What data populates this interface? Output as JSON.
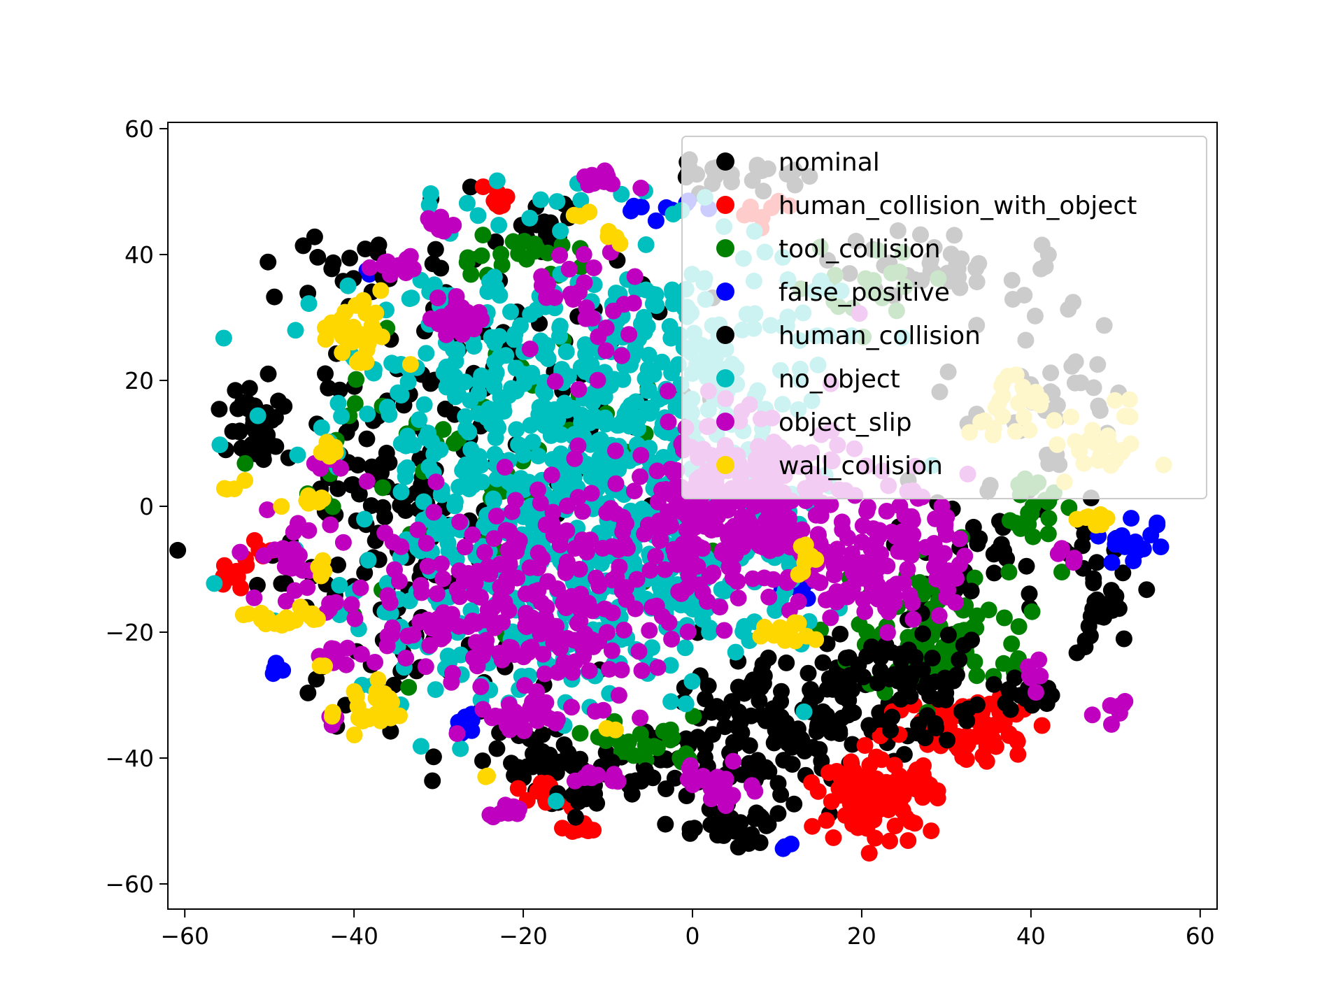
{
  "chart_data": {
    "type": "scatter",
    "title": "",
    "xlabel": "",
    "ylabel": "",
    "xlim": [
      -62,
      62
    ],
    "ylim": [
      -64,
      61
    ],
    "grid": false,
    "legend_placement": "top-right",
    "xticks": [
      -60,
      -40,
      -20,
      0,
      20,
      40,
      60
    ],
    "yticks": [
      -60,
      -40,
      -20,
      0,
      20,
      40,
      60
    ],
    "xtick_labels": [
      "−60",
      "−40",
      "−20",
      "0",
      "20",
      "40",
      "60"
    ],
    "ytick_labels": [
      "−60",
      "−40",
      "−20",
      "0",
      "20",
      "40",
      "60"
    ],
    "series": [
      {
        "name": "nominal",
        "color": "#000000",
        "clusters": [
          {
            "cx": -34,
            "cy": -5,
            "rx": 15,
            "ry": 27,
            "n": 170
          },
          {
            "cx": 10,
            "cy": -35,
            "rx": 14,
            "ry": 10,
            "n": 160
          },
          {
            "cx": -52,
            "cy": 12,
            "rx": 3,
            "ry": 7,
            "n": 35
          },
          {
            "cx": -17,
            "cy": -40,
            "rx": 10,
            "ry": 5,
            "n": 45
          },
          {
            "cx": 5,
            "cy": -51,
            "rx": 7,
            "ry": 4,
            "n": 30
          },
          {
            "cx": 48,
            "cy": -15,
            "rx": 4,
            "ry": 10,
            "n": 35
          },
          {
            "cx": 33,
            "cy": -8,
            "rx": 8,
            "ry": 10,
            "n": 40
          },
          {
            "cx": -17,
            "cy": 45,
            "rx": 4,
            "ry": 4,
            "n": 18
          },
          {
            "cx": 6,
            "cy": 53,
            "rx": 8,
            "ry": 2,
            "n": 25
          },
          {
            "cx": 30,
            "cy": 38,
            "rx": 14,
            "ry": 5,
            "n": 35
          },
          {
            "cx": 42,
            "cy": 15,
            "rx": 10,
            "ry": 15,
            "n": 40
          },
          {
            "cx": -20,
            "cy": 20,
            "rx": 20,
            "ry": 20,
            "n": 60
          }
        ]
      },
      {
        "name": "human_collision_with_object",
        "color": "#ff0000",
        "clusters": [
          {
            "cx": 22,
            "cy": -46,
            "rx": 6,
            "ry": 5,
            "n": 120
          },
          {
            "cx": 33,
            "cy": -35,
            "rx": 9,
            "ry": 5,
            "n": 70
          },
          {
            "cx": -55,
            "cy": -11,
            "rx": 1.5,
            "ry": 2,
            "n": 10
          },
          {
            "cx": -23,
            "cy": 49,
            "rx": 1.5,
            "ry": 1.5,
            "n": 8
          },
          {
            "cx": -13,
            "cy": -51,
            "rx": 2,
            "ry": 2,
            "n": 10
          },
          {
            "cx": -18,
            "cy": -45,
            "rx": 3,
            "ry": 2,
            "n": 10
          },
          {
            "cx": 8,
            "cy": 47,
            "rx": 3,
            "ry": 1.5,
            "n": 8
          },
          {
            "cx": -51,
            "cy": -8,
            "rx": 2,
            "ry": 3,
            "n": 6
          }
        ]
      },
      {
        "name": "tool_collision",
        "color": "#008000",
        "clusters": [
          {
            "cx": 30,
            "cy": -20,
            "rx": 10,
            "ry": 10,
            "n": 90
          },
          {
            "cx": -24,
            "cy": 5,
            "rx": 22,
            "ry": 22,
            "n": 70
          },
          {
            "cx": -5,
            "cy": -38,
            "rx": 5,
            "ry": 4,
            "n": 25
          },
          {
            "cx": 40,
            "cy": 0,
            "rx": 3,
            "ry": 5,
            "n": 25
          },
          {
            "cx": -20,
            "cy": 40,
            "rx": 8,
            "ry": 3,
            "n": 20
          },
          {
            "cx": 20,
            "cy": 35,
            "rx": 8,
            "ry": 6,
            "n": 20
          }
        ]
      },
      {
        "name": "false_positive",
        "color": "#0000ff",
        "clusters": [
          {
            "cx": 52,
            "cy": -6,
            "rx": 4,
            "ry": 3,
            "n": 18
          },
          {
            "cx": -27,
            "cy": -35,
            "rx": 1,
            "ry": 2,
            "n": 10
          },
          {
            "cx": -49,
            "cy": -26,
            "rx": 1,
            "ry": 1.5,
            "n": 6
          },
          {
            "cx": 13,
            "cy": -13,
            "rx": 2,
            "ry": 2,
            "n": 8
          },
          {
            "cx": 11,
            "cy": -54,
            "rx": 0.8,
            "ry": 0.8,
            "n": 3
          },
          {
            "cx": -2,
            "cy": 47,
            "rx": 2,
            "ry": 1.5,
            "n": 6
          },
          {
            "cx": -7,
            "cy": 47,
            "rx": 1,
            "ry": 1,
            "n": 3
          },
          {
            "cx": -38,
            "cy": 37,
            "rx": 1,
            "ry": 1,
            "n": 3
          }
        ]
      },
      {
        "name": "human_collision",
        "color": "#000000",
        "clusters": [
          {
            "cx": 25,
            "cy": -28,
            "rx": 12,
            "ry": 8,
            "n": 80
          },
          {
            "cx": -10,
            "cy": -45,
            "rx": 8,
            "ry": 4,
            "n": 25
          },
          {
            "cx": 40,
            "cy": -30,
            "rx": 4,
            "ry": 3,
            "n": 12
          },
          {
            "cx": -40,
            "cy": 38,
            "rx": 8,
            "ry": 5,
            "n": 20
          }
        ]
      },
      {
        "name": "no_object",
        "color": "#00bfbf",
        "clusters": [
          {
            "cx": -17,
            "cy": 5,
            "rx": 23,
            "ry": 33,
            "n": 700
          },
          {
            "cx": 2,
            "cy": 25,
            "rx": 12,
            "ry": 15,
            "n": 120
          },
          {
            "cx": 0,
            "cy": -12,
            "rx": 12,
            "ry": 10,
            "n": 80
          }
        ]
      },
      {
        "name": "object_slip",
        "color": "#bf00bf",
        "clusters": [
          {
            "cx": 5,
            "cy": 0,
            "rx": 14,
            "ry": 13,
            "n": 280
          },
          {
            "cx": -20,
            "cy": -15,
            "rx": 16,
            "ry": 15,
            "n": 240
          },
          {
            "cx": 23,
            "cy": -8,
            "rx": 9,
            "ry": 10,
            "n": 120
          },
          {
            "cx": 3,
            "cy": -44,
            "rx": 4,
            "ry": 3,
            "n": 25
          },
          {
            "cx": -20,
            "cy": -34,
            "rx": 4,
            "ry": 2,
            "n": 20
          },
          {
            "cx": -10,
            "cy": 52,
            "rx": 3,
            "ry": 1.5,
            "n": 12
          },
          {
            "cx": -28,
            "cy": 30,
            "rx": 4,
            "ry": 3,
            "n": 20
          },
          {
            "cx": -47,
            "cy": -8,
            "rx": 4,
            "ry": 7,
            "n": 25
          },
          {
            "cx": -30,
            "cy": 45,
            "rx": 2,
            "ry": 1.5,
            "n": 8
          },
          {
            "cx": -36,
            "cy": 38,
            "rx": 4,
            "ry": 1.5,
            "n": 10
          },
          {
            "cx": -12,
            "cy": -43,
            "rx": 3,
            "ry": 1,
            "n": 8
          },
          {
            "cx": -42,
            "cy": -24,
            "rx": 2,
            "ry": 2,
            "n": 8
          },
          {
            "cx": 50,
            "cy": -32,
            "rx": 3,
            "ry": 2,
            "n": 8
          },
          {
            "cx": 40,
            "cy": -27,
            "rx": 2,
            "ry": 2,
            "n": 6
          },
          {
            "cx": -43,
            "cy": 7,
            "rx": 2,
            "ry": 2,
            "n": 6
          },
          {
            "cx": -42,
            "cy": -34,
            "rx": 1.5,
            "ry": 1,
            "n": 4
          },
          {
            "cx": -22,
            "cy": -48,
            "rx": 2,
            "ry": 2,
            "n": 8
          },
          {
            "cx": -43,
            "cy": -16,
            "rx": 1.5,
            "ry": 1.5,
            "n": 4
          },
          {
            "cx": 45,
            "cy": -8,
            "rx": 1.5,
            "ry": 1.5,
            "n": 4
          },
          {
            "cx": -12,
            "cy": 30,
            "rx": 6,
            "ry": 10,
            "n": 30
          }
        ]
      },
      {
        "name": "wall_collision",
        "color": "#ffd700",
        "clusters": [
          {
            "cx": -40,
            "cy": 27,
            "rx": 4,
            "ry": 6,
            "n": 30
          },
          {
            "cx": -38,
            "cy": -32,
            "rx": 4,
            "ry": 4,
            "n": 25
          },
          {
            "cx": -48,
            "cy": -18,
            "rx": 5,
            "ry": 1.5,
            "n": 18
          },
          {
            "cx": 11,
            "cy": -20,
            "rx": 3,
            "ry": 2,
            "n": 12
          },
          {
            "cx": 48,
            "cy": -2,
            "rx": 2,
            "ry": 1.5,
            "n": 10
          },
          {
            "cx": -43,
            "cy": 8,
            "rx": 1.5,
            "ry": 2,
            "n": 8
          },
          {
            "cx": -46,
            "cy": 0,
            "rx": 2,
            "ry": 2,
            "n": 8
          },
          {
            "cx": 13,
            "cy": -8,
            "rx": 1,
            "ry": 3,
            "n": 8
          },
          {
            "cx": 48,
            "cy": 10,
            "rx": 5,
            "ry": 6,
            "n": 25
          },
          {
            "cx": 37,
            "cy": 15,
            "rx": 4,
            "ry": 6,
            "n": 25
          },
          {
            "cx": -54,
            "cy": 3,
            "rx": 1,
            "ry": 1,
            "n": 4
          },
          {
            "cx": -10,
            "cy": 42,
            "rx": 1.5,
            "ry": 1.5,
            "n": 4
          },
          {
            "cx": -13,
            "cy": 46,
            "rx": 1,
            "ry": 1,
            "n": 3
          },
          {
            "cx": -44,
            "cy": -10,
            "rx": 1,
            "ry": 1.5,
            "n": 4
          },
          {
            "cx": -24,
            "cy": -43,
            "rx": 0.8,
            "ry": 0.8,
            "n": 2
          },
          {
            "cx": -9,
            "cy": -36,
            "rx": 0.8,
            "ry": 0.8,
            "n": 2
          },
          {
            "cx": -44,
            "cy": -25,
            "rx": 0.8,
            "ry": 0.8,
            "n": 2
          }
        ]
      }
    ]
  }
}
